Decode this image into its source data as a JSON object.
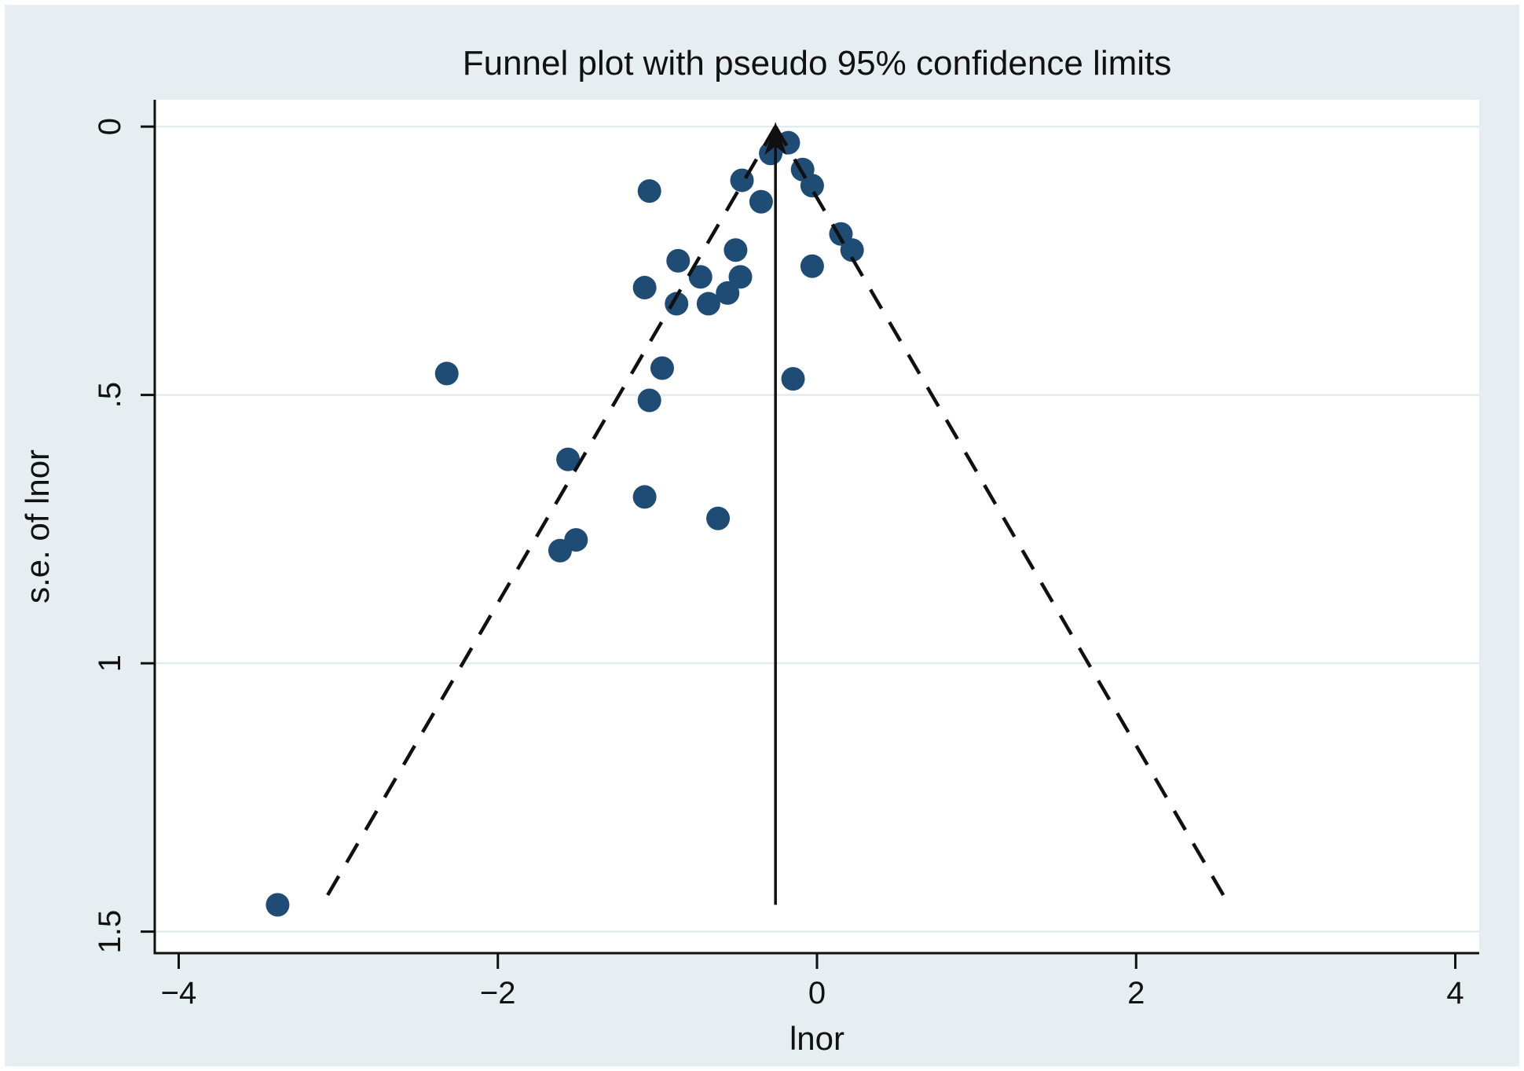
{
  "figure": {
    "outer_border_color": "#ffffff",
    "background_color": "#e6eef1",
    "plot_background_color": "#ffffff"
  },
  "chart_data": {
    "type": "scatter",
    "title": "Funnel plot with pseudo 95% confidence limits",
    "xlabel": "lnor",
    "ylabel": "s.e. of lnor",
    "x_ticks": [
      -4,
      -2,
      0,
      2,
      4
    ],
    "x_tick_labels": [
      "−4",
      "−2",
      "0",
      "2",
      "4"
    ],
    "y_ticks": [
      0,
      0.5,
      1,
      1.5
    ],
    "y_tick_labels": [
      "0",
      ".5",
      "1",
      "1.5"
    ],
    "xlim": [
      -4.15,
      4.15
    ],
    "ylim": [
      -0.05,
      1.54
    ],
    "y_axis_inverted": true,
    "grid": true,
    "legend": "none",
    "marker_color": "#1f4c74",
    "grid_color": "#e2ecef",
    "axis_color": "#101010",
    "funnel": {
      "center_lnor": -0.26,
      "z_value": 1.96,
      "se_start": 0,
      "se_end": 1.45,
      "center_line_style": "solid",
      "limit_line_style": "dashed"
    },
    "points": [
      {
        "lnor": -3.38,
        "se": 1.45
      },
      {
        "lnor": -2.32,
        "se": 0.46
      },
      {
        "lnor": -1.56,
        "se": 0.62
      },
      {
        "lnor": -1.51,
        "se": 0.77
      },
      {
        "lnor": -1.61,
        "se": 0.79
      },
      {
        "lnor": -1.08,
        "se": 0.69
      },
      {
        "lnor": -1.05,
        "se": 0.51
      },
      {
        "lnor": -0.97,
        "se": 0.45
      },
      {
        "lnor": -0.62,
        "se": 0.73
      },
      {
        "lnor": -0.15,
        "se": 0.47
      },
      {
        "lnor": -1.05,
        "se": 0.12
      },
      {
        "lnor": -1.08,
        "se": 0.3
      },
      {
        "lnor": -0.87,
        "se": 0.25
      },
      {
        "lnor": -0.88,
        "se": 0.33
      },
      {
        "lnor": -0.73,
        "se": 0.28
      },
      {
        "lnor": -0.68,
        "se": 0.33
      },
      {
        "lnor": -0.56,
        "se": 0.31
      },
      {
        "lnor": -0.48,
        "se": 0.28
      },
      {
        "lnor": -0.51,
        "se": 0.23
      },
      {
        "lnor": -0.47,
        "se": 0.1
      },
      {
        "lnor": -0.35,
        "se": 0.14
      },
      {
        "lnor": -0.29,
        "se": 0.05
      },
      {
        "lnor": -0.18,
        "se": 0.03
      },
      {
        "lnor": -0.09,
        "se": 0.08
      },
      {
        "lnor": -0.03,
        "se": 0.11
      },
      {
        "lnor": -0.03,
        "se": 0.26
      },
      {
        "lnor": 0.15,
        "se": 0.2
      },
      {
        "lnor": 0.22,
        "se": 0.23
      }
    ]
  }
}
